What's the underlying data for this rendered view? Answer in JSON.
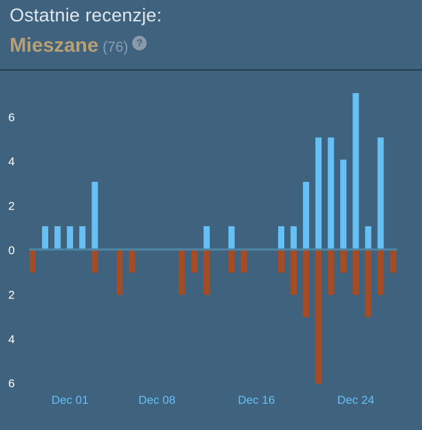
{
  "header": {
    "title": "Ostatnie recenzje:",
    "rating": "Mieszane",
    "count": "(76)",
    "help_glyph": "?"
  },
  "colors": {
    "background": "#3f627e",
    "positive": "#66c0f4",
    "negative": "#a34c25",
    "axis_label": "#66c0f4",
    "tick_label": "#ffffff",
    "zero_line": "#4d87a8"
  },
  "chart_data": {
    "type": "bar",
    "title": "",
    "xlabel": "",
    "ylabel": "",
    "ylim": [
      -6,
      7
    ],
    "y_ticks": [
      6,
      4,
      2,
      0,
      -2,
      -4,
      -6
    ],
    "y_tick_labels": [
      "6",
      "4",
      "2",
      "0",
      "2",
      "4",
      "6"
    ],
    "x_tick_labels": [
      {
        "label": "Dec 01",
        "index": 3
      },
      {
        "label": "Dec 08",
        "index": 10
      },
      {
        "label": "Dec 16",
        "index": 18
      },
      {
        "label": "Dec 24",
        "index": 26
      }
    ],
    "series": [
      {
        "name": "positive",
        "values": [
          0,
          1,
          1,
          1,
          1,
          3,
          0,
          0,
          0,
          0,
          0,
          0,
          0,
          0,
          1,
          0,
          1,
          0,
          0,
          0,
          1,
          1,
          3,
          5,
          5,
          4,
          7,
          1,
          5,
          0
        ]
      },
      {
        "name": "negative",
        "values": [
          1,
          0,
          0,
          0,
          0,
          1,
          0,
          2,
          1,
          0,
          0,
          0,
          2,
          1,
          2,
          0,
          1,
          1,
          0,
          0,
          1,
          2,
          3,
          6,
          2,
          1,
          2,
          3,
          2,
          1
        ]
      }
    ]
  }
}
